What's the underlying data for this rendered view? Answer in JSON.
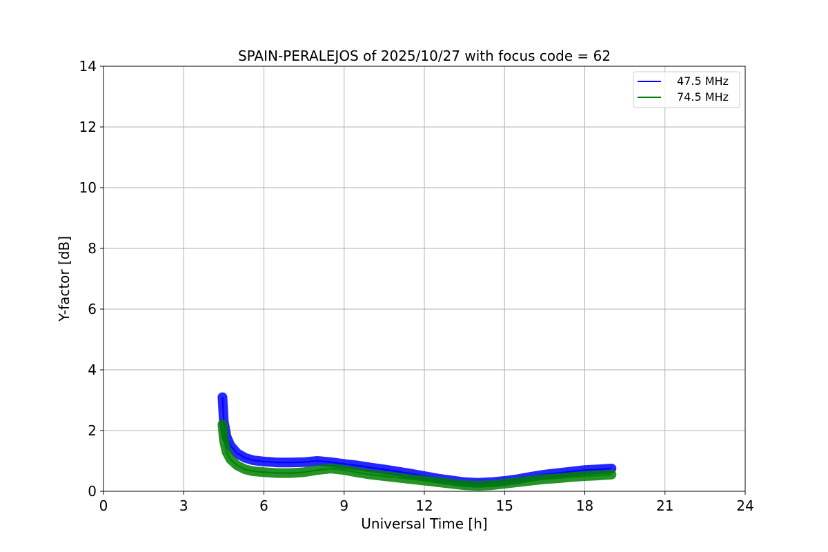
{
  "chart_data": {
    "type": "line",
    "title": "SPAIN-PERALEJOS of 2025/10/27 with focus code = 62",
    "xlabel": "Universal Time [h]",
    "ylabel": "Y-factor [dB]",
    "xlim": [
      0,
      24
    ],
    "ylim": [
      0,
      14
    ],
    "xticks": [
      0,
      3,
      6,
      9,
      12,
      15,
      18,
      21,
      24
    ],
    "yticks": [
      0,
      2,
      4,
      6,
      8,
      10,
      12,
      14
    ],
    "grid": true,
    "legend_position": "top-right",
    "series": [
      {
        "name": "47.5 MHz",
        "color": "#0000ff",
        "x": [
          4.45,
          4.5,
          4.6,
          4.75,
          5.0,
          5.3,
          5.6,
          6.0,
          6.5,
          7.0,
          7.5,
          8.0,
          8.5,
          9.0,
          9.5,
          10.0,
          10.5,
          11.0,
          11.5,
          12.0,
          12.5,
          13.0,
          13.5,
          14.0,
          14.5,
          15.0,
          15.5,
          16.0,
          16.5,
          17.0,
          17.5,
          18.0,
          18.5,
          19.0
        ],
        "y": [
          3.1,
          2.3,
          1.8,
          1.5,
          1.25,
          1.1,
          1.02,
          0.98,
          0.95,
          0.95,
          0.96,
          1.0,
          0.96,
          0.9,
          0.85,
          0.78,
          0.72,
          0.65,
          0.58,
          0.5,
          0.42,
          0.36,
          0.3,
          0.28,
          0.3,
          0.34,
          0.4,
          0.48,
          0.55,
          0.6,
          0.65,
          0.7,
          0.72,
          0.75
        ]
      },
      {
        "name": "74.5 MHz",
        "color": "#008000",
        "x": [
          4.45,
          4.5,
          4.6,
          4.75,
          5.0,
          5.3,
          5.6,
          6.0,
          6.5,
          7.0,
          7.5,
          8.0,
          8.5,
          9.0,
          9.5,
          10.0,
          10.5,
          11.0,
          11.5,
          12.0,
          12.5,
          13.0,
          13.5,
          14.0,
          14.5,
          15.0,
          15.5,
          16.0,
          16.5,
          17.0,
          17.5,
          18.0,
          18.5,
          19.0
        ],
        "y": [
          2.2,
          1.7,
          1.3,
          1.05,
          0.85,
          0.72,
          0.66,
          0.63,
          0.6,
          0.6,
          0.63,
          0.7,
          0.75,
          0.7,
          0.62,
          0.55,
          0.5,
          0.45,
          0.4,
          0.35,
          0.3,
          0.25,
          0.2,
          0.18,
          0.2,
          0.25,
          0.3,
          0.35,
          0.4,
          0.43,
          0.47,
          0.5,
          0.52,
          0.55
        ]
      }
    ]
  }
}
